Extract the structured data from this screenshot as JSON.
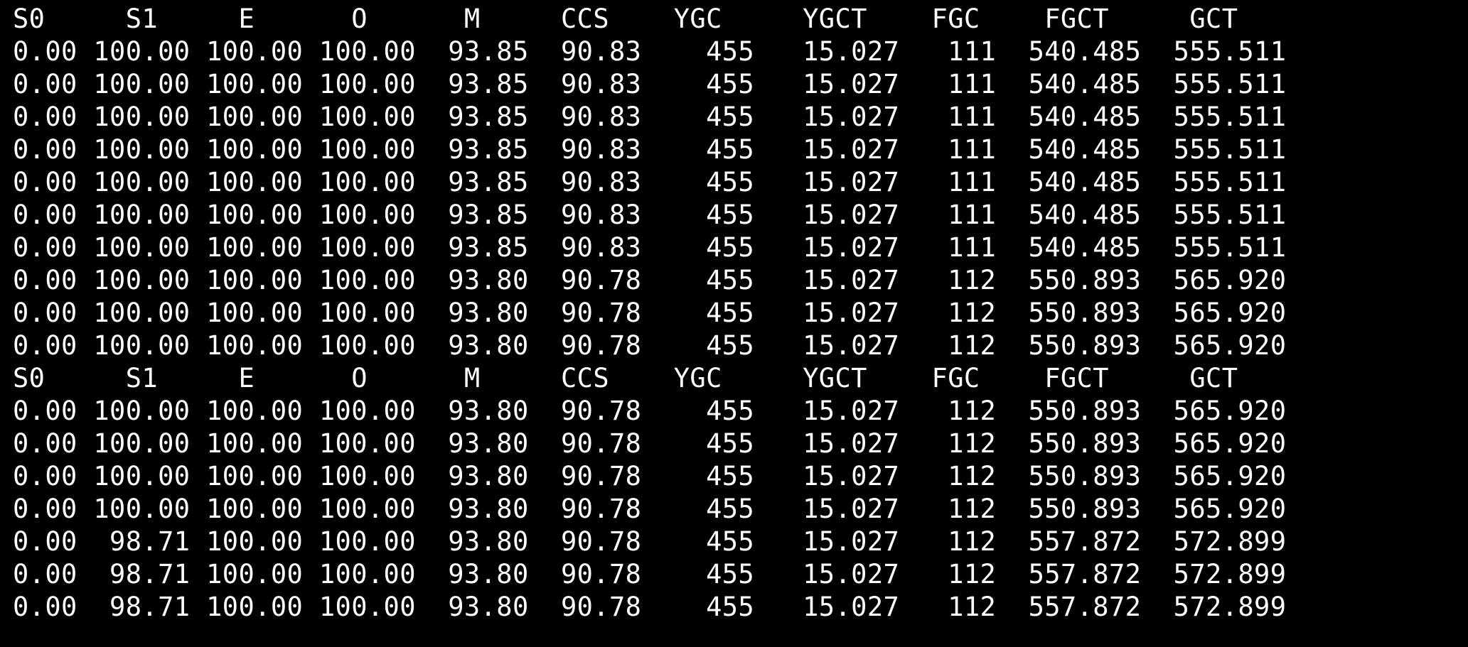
{
  "terminal": {
    "lines": [
      "S0     S1     E      O      M     CCS    YGC     YGCT    FGC    FGCT     GCT   ",
      "0.00 100.00 100.00 100.00  93.85  90.83    455   15.027   111  540.485  555.511",
      "0.00 100.00 100.00 100.00  93.85  90.83    455   15.027   111  540.485  555.511",
      "0.00 100.00 100.00 100.00  93.85  90.83    455   15.027   111  540.485  555.511",
      "0.00 100.00 100.00 100.00  93.85  90.83    455   15.027   111  540.485  555.511",
      "0.00 100.00 100.00 100.00  93.85  90.83    455   15.027   111  540.485  555.511",
      "0.00 100.00 100.00 100.00  93.85  90.83    455   15.027   111  540.485  555.511",
      "0.00 100.00 100.00 100.00  93.85  90.83    455   15.027   111  540.485  555.511",
      "0.00 100.00 100.00 100.00  93.80  90.78    455   15.027   112  550.893  565.920",
      "0.00 100.00 100.00 100.00  93.80  90.78    455   15.027   112  550.893  565.920",
      "0.00 100.00 100.00 100.00  93.80  90.78    455   15.027   112  550.893  565.920",
      "S0     S1     E      O      M     CCS    YGC     YGCT    FGC    FGCT     GCT   ",
      "0.00 100.00 100.00 100.00  93.80  90.78    455   15.027   112  550.893  565.920",
      "0.00 100.00 100.00 100.00  93.80  90.78    455   15.027   112  550.893  565.920",
      "0.00 100.00 100.00 100.00  93.80  90.78    455   15.027   112  550.893  565.920",
      "0.00 100.00 100.00 100.00  93.80  90.78    455   15.027   112  550.893  565.920",
      "0.00  98.71 100.00 100.00  93.80  90.78    455   15.027   112  557.872  572.899",
      "0.00  98.71 100.00 100.00  93.80  90.78    455   15.027   112  557.872  572.899",
      "0.00  98.71 100.00 100.00  93.80  90.78    455   15.027   112  557.872  572.899"
    ]
  },
  "colors": {
    "background": "#000000",
    "text": "#ffffff"
  }
}
